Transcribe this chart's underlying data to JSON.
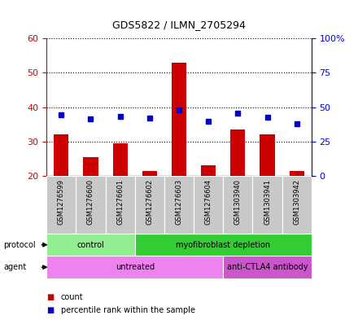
{
  "title": "GDS5822 / ILMN_2705294",
  "samples": [
    "GSM1276599",
    "GSM1276600",
    "GSM1276601",
    "GSM1276602",
    "GSM1276603",
    "GSM1276604",
    "GSM1303940",
    "GSM1303941",
    "GSM1303942"
  ],
  "counts": [
    32,
    25.5,
    29.5,
    21.5,
    53,
    23,
    33.5,
    32,
    21.5
  ],
  "percentiles": [
    44.5,
    41.5,
    43,
    42,
    48,
    39.5,
    45.5,
    42.5,
    38
  ],
  "ylim_left": [
    20,
    60
  ],
  "ylim_right": [
    0,
    100
  ],
  "yticks_left": [
    20,
    30,
    40,
    50,
    60
  ],
  "yticks_right": [
    0,
    25,
    50,
    75,
    100
  ],
  "ytick_labels_left": [
    "20",
    "30",
    "40",
    "50",
    "60"
  ],
  "ytick_labels_right": [
    "0",
    "25",
    "50",
    "75",
    "100%"
  ],
  "bar_color": "#cc0000",
  "dot_color": "#0000cc",
  "sample_bg_color": "#c8c8c8",
  "main_bg_color": "#ffffff",
  "protocol_groups": [
    {
      "label": "control",
      "start": 0,
      "end": 3,
      "color": "#90ee90"
    },
    {
      "label": "myofibroblast depletion",
      "start": 3,
      "end": 9,
      "color": "#33cc33"
    }
  ],
  "agent_groups": [
    {
      "label": "untreated",
      "start": 0,
      "end": 6,
      "color": "#ee82ee"
    },
    {
      "label": "anti-CTLA4 antibody",
      "start": 6,
      "end": 9,
      "color": "#cc55cc"
    }
  ],
  "legend_count_label": "count",
  "legend_pct_label": "percentile rank within the sample",
  "left_axis_color": "#cc0000",
  "right_axis_color": "#0000cc"
}
